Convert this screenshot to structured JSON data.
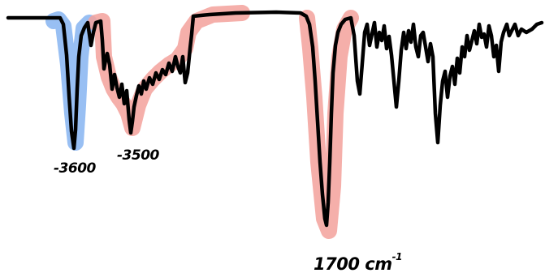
{
  "annotations": {
    "peak_oh_free": "-3600",
    "peak_oh_hbond": "-3500",
    "peak_carbonyl": "1700 cm",
    "peak_carbonyl_sup": "-1"
  },
  "highlight_colors": {
    "blue": "#8db8f2",
    "red": "#f3a19b"
  },
  "line_color": "#000000"
}
